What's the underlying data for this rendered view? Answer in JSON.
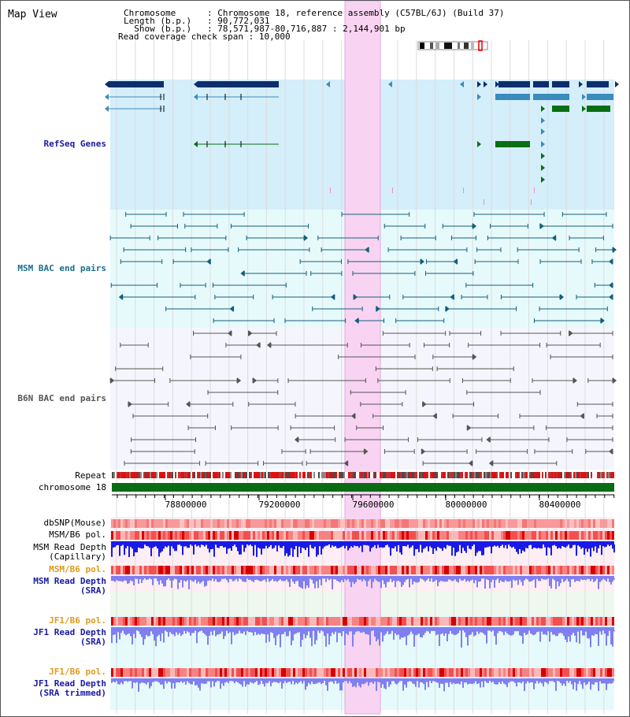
{
  "app": {
    "title": "Map View"
  },
  "info": [
    {
      "label": "Chromosome      ",
      "value": "Chromosome 18, reference assembly (C57BL/6J) (Build 37)"
    },
    {
      "label": "Length (b.p.)   ",
      "value": "90,772,031"
    },
    {
      "label": "  Show (b.p.)   ",
      "value": "78,571,987-80,716,887 : 2,144,901 bp"
    },
    {
      "label": "Read coverage check span",
      "value": "10,000"
    }
  ],
  "tracks": {
    "refseq": "RefSeq Genes",
    "msm_bac": "MSM BAC end pairs",
    "b6n_bac": "B6N BAC end pairs",
    "repeat": "Repeat",
    "chromosome": "chromosome 18",
    "dbsnp": "dbSNP(Mouse)",
    "msm_b6_pol_1": "MSM/B6 pol.",
    "msm_read_depth_cap": [
      "MSM Read Depth",
      "(Capillary)"
    ],
    "msm_b6_pol_2": "MSM/B6 pol.",
    "msm_read_depth_sra": [
      "MSM Read Depth",
      "(SRA)"
    ],
    "jf1_b6_pol_1": "JF1/B6 pol.",
    "jf1_read_depth_sra": [
      "JF1 Read Depth",
      "(SRA)"
    ],
    "jf1_b6_pol_2": "JF1/B6 pol.",
    "jf1_read_depth_trim": [
      "JF1 Read Depth",
      "(SRA trimmed)"
    ]
  },
  "axis": {
    "ticks": [
      "78800000",
      "79200000",
      "79600000",
      "80000000",
      "80400000"
    ]
  },
  "colors": {
    "refseq_bg": "#d4eefa",
    "msm_bg": "#e6fafc",
    "b6n_bg": "#f5f6fd",
    "highlight": "#f8d4f2",
    "gene_dark": "#0d2d6b",
    "gene_mid": "#3a8cbd",
    "gene_green": "#0a6e14",
    "msm_line": "#145f7a",
    "b6n_line": "#555555",
    "chrom_green": "#0b6b13",
    "depth_blue": "#1a1ae6",
    "depth_light": "#7f7ff2",
    "label_blue": "#1a1aa6",
    "label_orange": "#e09a1a"
  }
}
